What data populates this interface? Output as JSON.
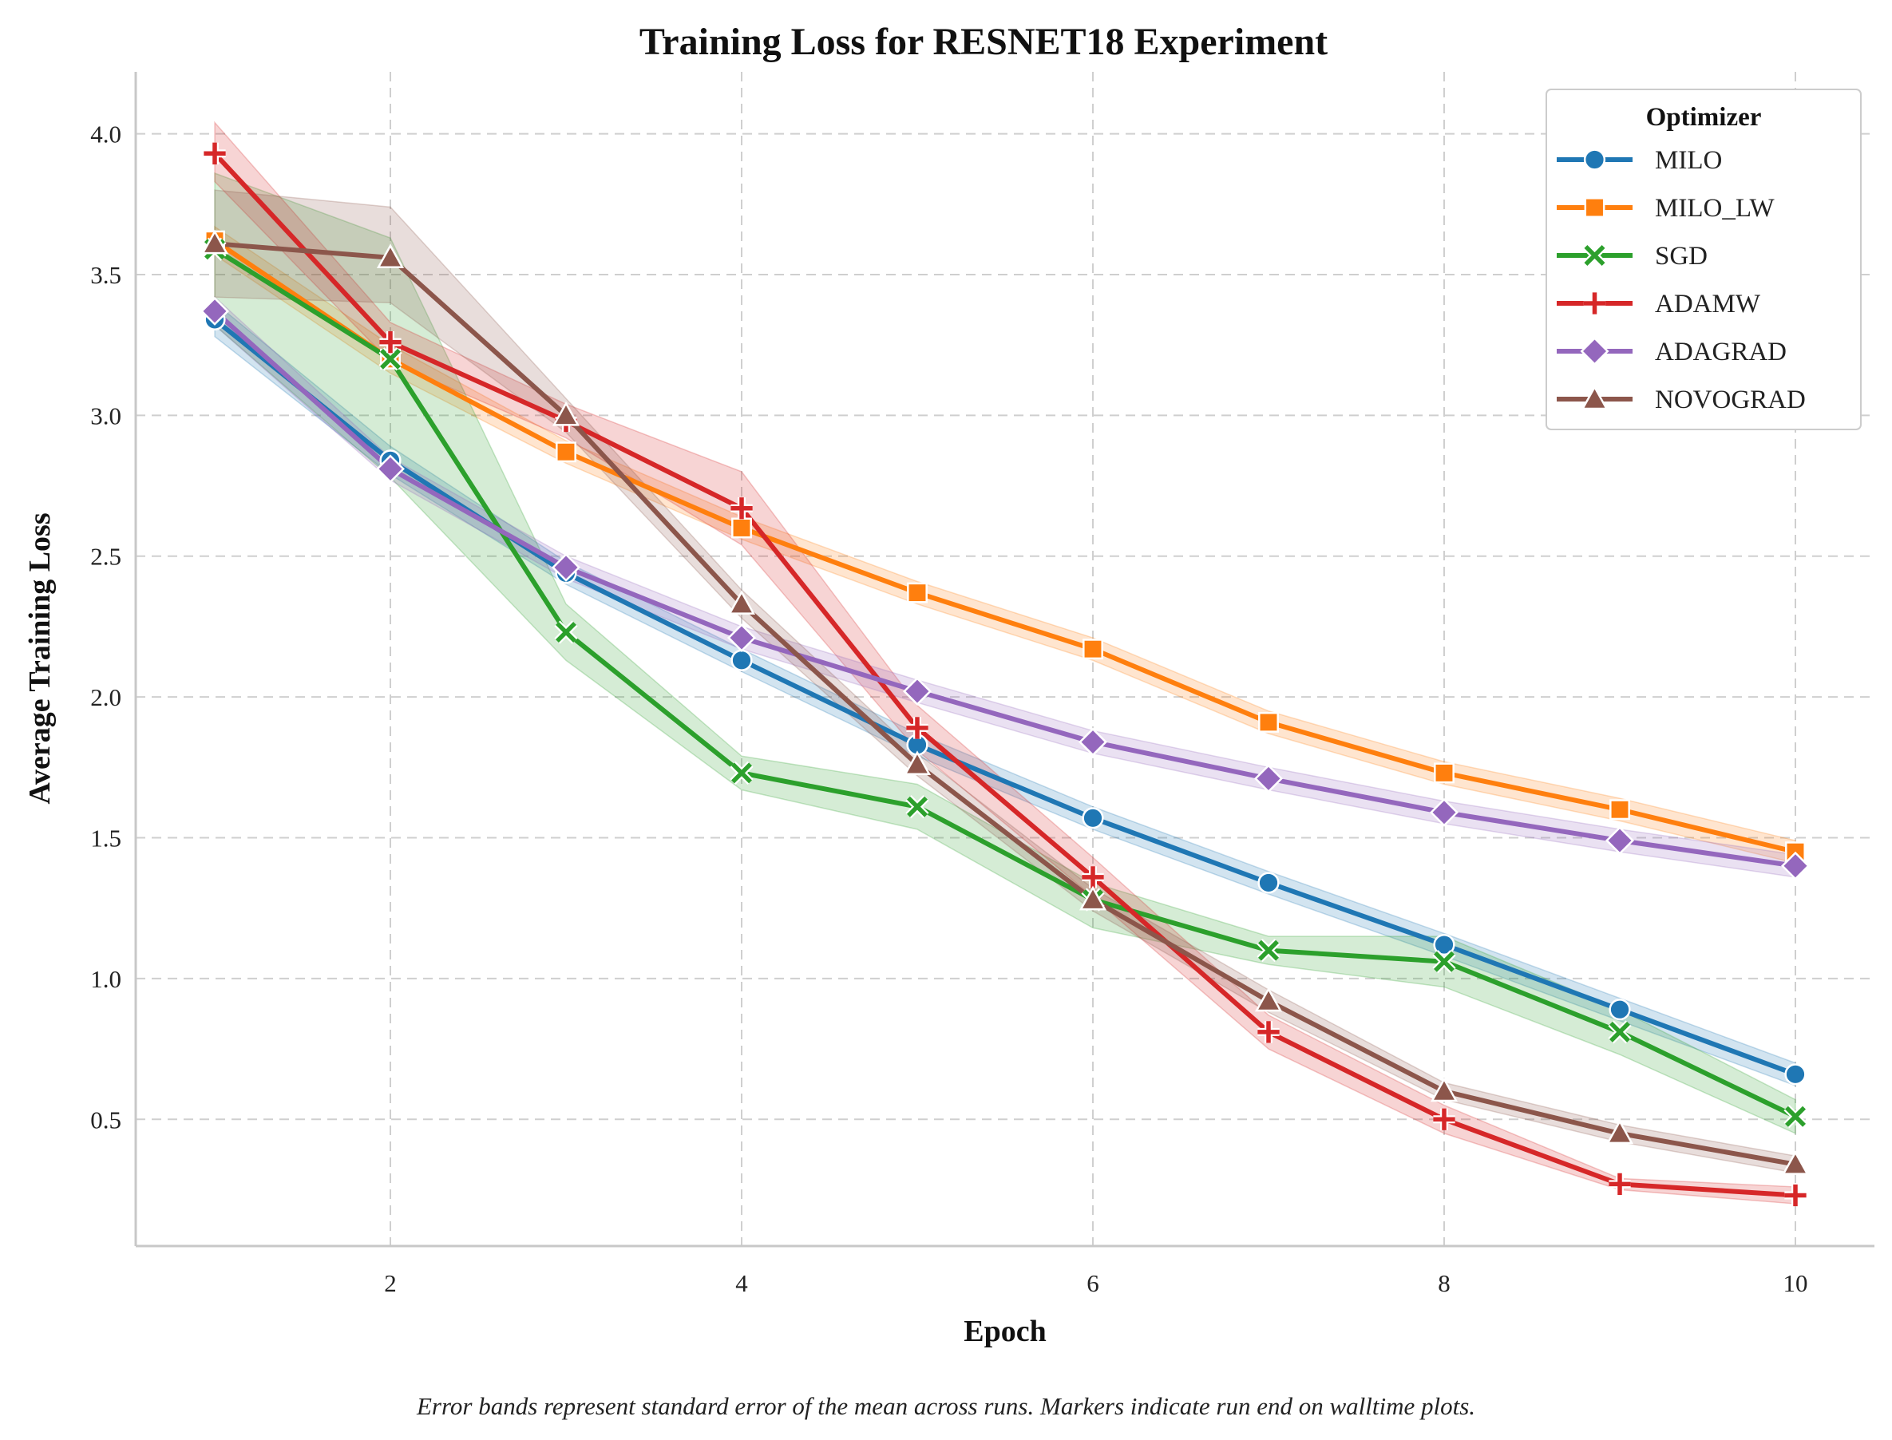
{
  "chart_data": {
    "type": "line",
    "title": "Training Loss for RESNET18 Experiment",
    "xlabel": "Epoch",
    "ylabel": "Average Training Loss",
    "xlim": [
      0.55,
      10.45
    ],
    "ylim": [
      0.05,
      4.22
    ],
    "xticks": [
      2,
      4,
      6,
      8,
      10
    ],
    "yticks": [
      0.5,
      1.0,
      1.5,
      2.0,
      2.5,
      3.0,
      3.5,
      4.0
    ],
    "grid": true,
    "legend": {
      "title": "Optimizer",
      "placement": "top-right"
    },
    "caption": "Error bands represent standard error of the mean across runs. Markers indicate run end on walltime plots.",
    "x": [
      1,
      2,
      3,
      4,
      5,
      6,
      7,
      8,
      9,
      10
    ],
    "series": [
      {
        "name": "MILO",
        "color": "#1f77b4",
        "marker": "circle",
        "values": [
          3.34,
          2.84,
          2.44,
          2.13,
          1.83,
          1.57,
          1.34,
          1.12,
          0.89,
          0.66
        ],
        "lower": [
          3.28,
          2.79,
          2.4,
          2.09,
          1.79,
          1.53,
          1.3,
          1.08,
          0.85,
          0.62
        ],
        "upper": [
          3.4,
          2.89,
          2.48,
          2.17,
          1.87,
          1.61,
          1.38,
          1.16,
          0.93,
          0.7
        ]
      },
      {
        "name": "MILO_LW",
        "color": "#ff7f0e",
        "marker": "square",
        "values": [
          3.62,
          3.2,
          2.87,
          2.6,
          2.37,
          2.17,
          1.91,
          1.73,
          1.6,
          1.45
        ],
        "lower": [
          3.57,
          3.15,
          2.83,
          2.56,
          2.33,
          2.13,
          1.87,
          1.69,
          1.56,
          1.41
        ],
        "upper": [
          3.67,
          3.25,
          2.91,
          2.64,
          2.41,
          2.21,
          1.95,
          1.77,
          1.64,
          1.49
        ]
      },
      {
        "name": "SGD",
        "color": "#2ca02c",
        "marker": "x",
        "values": [
          3.59,
          3.2,
          2.23,
          1.73,
          1.61,
          1.28,
          1.1,
          1.06,
          0.81,
          0.51
        ],
        "lower": [
          3.32,
          2.78,
          2.13,
          1.67,
          1.53,
          1.18,
          1.05,
          0.97,
          0.73,
          0.45
        ],
        "upper": [
          3.86,
          3.63,
          2.33,
          1.79,
          1.69,
          1.34,
          1.15,
          1.15,
          0.89,
          0.57
        ]
      },
      {
        "name": "ADAMW",
        "color": "#d62728",
        "marker": "plus",
        "values": [
          3.93,
          3.26,
          2.98,
          2.67,
          1.89,
          1.36,
          0.81,
          0.5,
          0.27,
          0.23
        ],
        "lower": [
          3.83,
          3.19,
          2.92,
          2.54,
          1.81,
          1.29,
          0.75,
          0.45,
          0.25,
          0.2
        ],
        "upper": [
          4.04,
          3.33,
          3.04,
          2.8,
          1.97,
          1.43,
          0.87,
          0.55,
          0.29,
          0.26
        ]
      },
      {
        "name": "ADAGRAD",
        "color": "#9467bd",
        "marker": "diamond",
        "values": [
          3.37,
          2.81,
          2.46,
          2.21,
          2.02,
          1.84,
          1.71,
          1.59,
          1.49,
          1.4
        ],
        "lower": [
          3.32,
          2.77,
          2.42,
          2.17,
          1.98,
          1.8,
          1.67,
          1.55,
          1.45,
          1.36
        ],
        "upper": [
          3.42,
          2.85,
          2.5,
          2.25,
          2.06,
          1.88,
          1.75,
          1.63,
          1.53,
          1.44
        ]
      },
      {
        "name": "NOVOGRAD",
        "color": "#8c564b",
        "marker": "triangle",
        "values": [
          3.61,
          3.56,
          3.0,
          2.33,
          1.76,
          1.28,
          0.92,
          0.6,
          0.45,
          0.34
        ],
        "lower": [
          3.42,
          3.4,
          2.94,
          2.28,
          1.72,
          1.24,
          0.88,
          0.57,
          0.42,
          0.31
        ],
        "upper": [
          3.8,
          3.74,
          3.06,
          2.38,
          1.8,
          1.32,
          0.96,
          0.63,
          0.48,
          0.37
        ]
      }
    ]
  }
}
